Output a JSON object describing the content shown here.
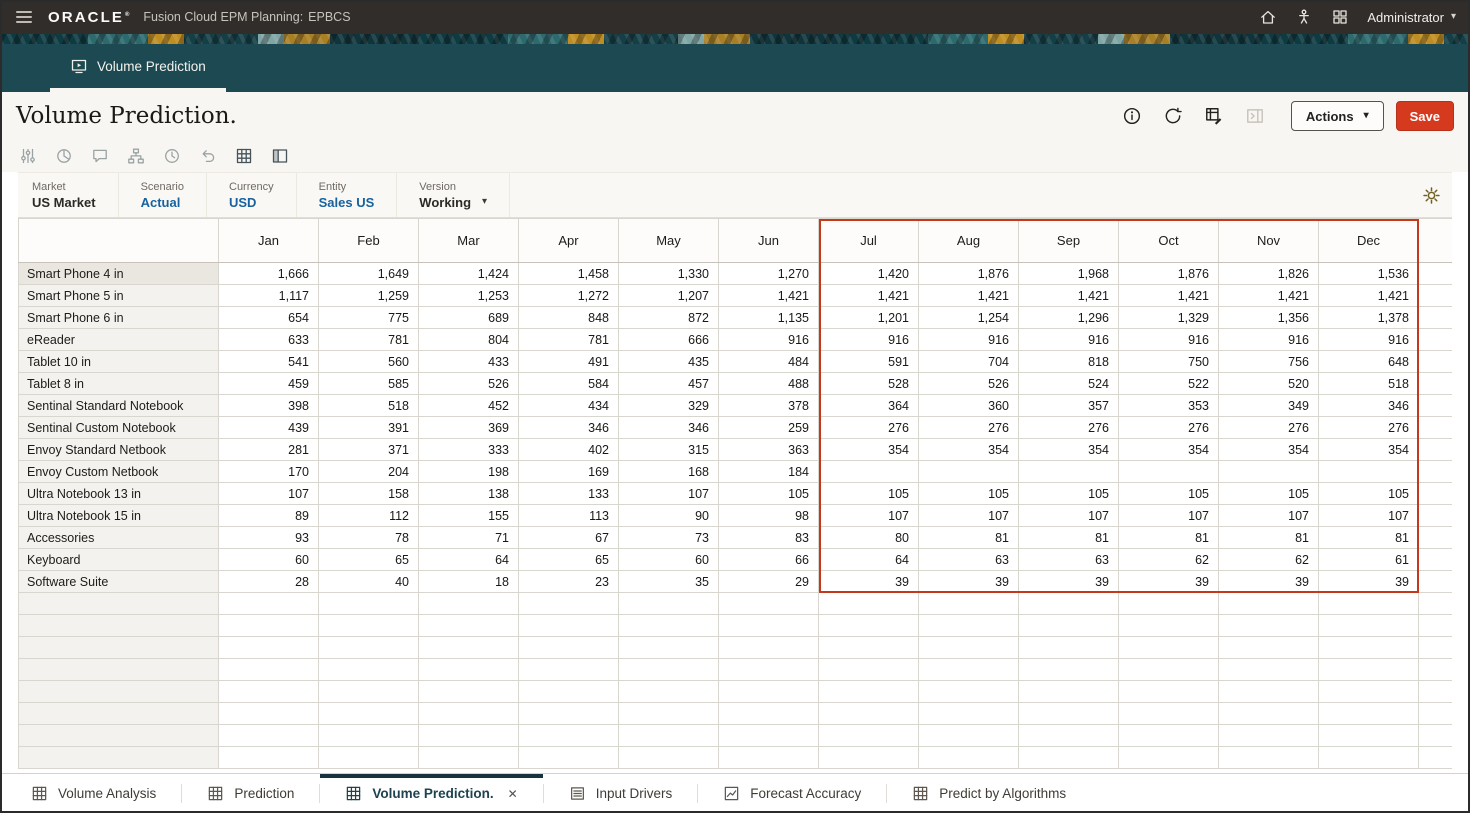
{
  "topbar": {
    "brand": "ORACLE",
    "brand_mark": "®",
    "app_title": "Fusion Cloud EPM Planning:",
    "app_code": "EPBCS",
    "user_name": "Administrator",
    "icons": [
      "hamburger-menu-icon",
      "home-icon",
      "accessibility-icon",
      "apps-icon",
      "caret-down-icon"
    ]
  },
  "workarea_tab": {
    "label": "Volume Prediction",
    "icon": "board-icon"
  },
  "page": {
    "title": "Volume Prediction.",
    "actions_label": "Actions",
    "save_label": "Save",
    "icon_buttons": [
      {
        "name": "info-icon",
        "disabled": false
      },
      {
        "name": "refresh-icon",
        "disabled": false
      },
      {
        "name": "data-entry-icon",
        "disabled": false
      },
      {
        "name": "open-panel-icon",
        "disabled": true
      }
    ]
  },
  "toolbar": {
    "icons": [
      {
        "name": "adjust-icon",
        "disabled": true
      },
      {
        "name": "analyze-icon",
        "disabled": true
      },
      {
        "name": "comments-icon",
        "disabled": true
      },
      {
        "name": "hierarchy-icon",
        "disabled": true
      },
      {
        "name": "history-icon",
        "disabled": true
      },
      {
        "name": "undo-icon",
        "disabled": true
      },
      {
        "name": "grid-icon",
        "disabled": false
      },
      {
        "name": "freeze-icon",
        "disabled": false
      }
    ]
  },
  "pov": {
    "items": [
      {
        "label": "Market",
        "value": "US Market",
        "linked": false,
        "dropdown": false
      },
      {
        "label": "Scenario",
        "value": "Actual",
        "linked": true,
        "dropdown": false
      },
      {
        "label": "Currency",
        "value": "USD",
        "linked": true,
        "dropdown": false
      },
      {
        "label": "Entity",
        "value": "Sales US",
        "linked": true,
        "dropdown": false
      },
      {
        "label": "Version",
        "value": "Working",
        "linked": false,
        "dropdown": true
      }
    ],
    "gear_icon": "gear-icon"
  },
  "grid": {
    "months": [
      "Jan",
      "Feb",
      "Mar",
      "Apr",
      "May",
      "Jun",
      "Jul",
      "Aug",
      "Sep",
      "Oct",
      "Nov",
      "Dec"
    ],
    "predicted_start_index": 6,
    "trailing_empty_rows": 8,
    "rows": [
      {
        "label": "Smart Phone 4 in",
        "values": [
          "1,666",
          "1,649",
          "1,424",
          "1,458",
          "1,330",
          "1,270",
          "1,420",
          "1,876",
          "1,968",
          "1,876",
          "1,826",
          "1,536"
        ]
      },
      {
        "label": "Smart Phone 5 in",
        "values": [
          "1,117",
          "1,259",
          "1,253",
          "1,272",
          "1,207",
          "1,421",
          "1,421",
          "1,421",
          "1,421",
          "1,421",
          "1,421",
          "1,421"
        ]
      },
      {
        "label": "Smart Phone 6 in",
        "values": [
          "654",
          "775",
          "689",
          "848",
          "872",
          "1,135",
          "1,201",
          "1,254",
          "1,296",
          "1,329",
          "1,356",
          "1,378"
        ]
      },
      {
        "label": "eReader",
        "values": [
          "633",
          "781",
          "804",
          "781",
          "666",
          "916",
          "916",
          "916",
          "916",
          "916",
          "916",
          "916"
        ]
      },
      {
        "label": "Tablet 10 in",
        "values": [
          "541",
          "560",
          "433",
          "491",
          "435",
          "484",
          "591",
          "704",
          "818",
          "750",
          "756",
          "648"
        ]
      },
      {
        "label": "Tablet 8 in",
        "values": [
          "459",
          "585",
          "526",
          "584",
          "457",
          "488",
          "528",
          "526",
          "524",
          "522",
          "520",
          "518"
        ]
      },
      {
        "label": "Sentinal Standard Notebook",
        "values": [
          "398",
          "518",
          "452",
          "434",
          "329",
          "378",
          "364",
          "360",
          "357",
          "353",
          "349",
          "346"
        ]
      },
      {
        "label": "Sentinal Custom Notebook",
        "values": [
          "439",
          "391",
          "369",
          "346",
          "346",
          "259",
          "276",
          "276",
          "276",
          "276",
          "276",
          "276"
        ]
      },
      {
        "label": "Envoy Standard Netbook",
        "values": [
          "281",
          "371",
          "333",
          "402",
          "315",
          "363",
          "354",
          "354",
          "354",
          "354",
          "354",
          "354"
        ]
      },
      {
        "label": "Envoy Custom Netbook",
        "values": [
          "170",
          "204",
          "198",
          "169",
          "168",
          "184",
          "",
          "",
          "",
          "",
          "",
          ""
        ]
      },
      {
        "label": "Ultra Notebook 13 in",
        "values": [
          "107",
          "158",
          "138",
          "133",
          "107",
          "105",
          "105",
          "105",
          "105",
          "105",
          "105",
          "105"
        ]
      },
      {
        "label": "Ultra Notebook 15 in",
        "values": [
          "89",
          "112",
          "155",
          "113",
          "90",
          "98",
          "107",
          "107",
          "107",
          "107",
          "107",
          "107"
        ]
      },
      {
        "label": "Accessories",
        "values": [
          "93",
          "78",
          "71",
          "67",
          "73",
          "83",
          "80",
          "81",
          "81",
          "81",
          "81",
          "81"
        ]
      },
      {
        "label": "Keyboard",
        "values": [
          "60",
          "65",
          "64",
          "65",
          "60",
          "66",
          "64",
          "63",
          "63",
          "62",
          "62",
          "61"
        ]
      },
      {
        "label": "Software Suite",
        "values": [
          "28",
          "40",
          "18",
          "23",
          "35",
          "29",
          "39",
          "39",
          "39",
          "39",
          "39",
          "39"
        ]
      }
    ]
  },
  "bottom_tabs": [
    {
      "label": "Volume Analysis",
      "icon": "grid-icon",
      "active": false,
      "closable": false
    },
    {
      "label": "Prediction",
      "icon": "grid-icon",
      "active": false,
      "closable": false
    },
    {
      "label": "Volume Prediction.",
      "icon": "grid-icon",
      "active": true,
      "closable": true,
      "close_glyph": "✕"
    },
    {
      "label": "Input Drivers",
      "icon": "list-icon",
      "active": false,
      "closable": false
    },
    {
      "label": "Forecast Accuracy",
      "icon": "chart-icon",
      "active": false,
      "closable": false
    },
    {
      "label": "Predict by Algorithms",
      "icon": "grid-icon",
      "active": false,
      "closable": false
    }
  ],
  "colors": {
    "prediction_highlight": "#c4381c",
    "save_red": "#d63a1e",
    "pov_link_blue": "#17629e",
    "tabstrip_teal": "#1c4952",
    "topbar_dark": "#312d2a"
  }
}
